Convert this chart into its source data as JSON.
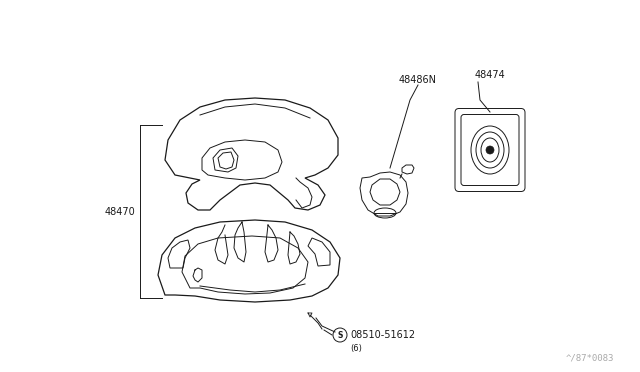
{
  "bg_color": "#ffffff",
  "line_color": "#1a1a1a",
  "fig_width": 6.4,
  "fig_height": 3.72,
  "dpi": 100,
  "label_fontsize": 7.0,
  "watermark_text": "^/87*0083",
  "watermark_fontsize": 6.5
}
